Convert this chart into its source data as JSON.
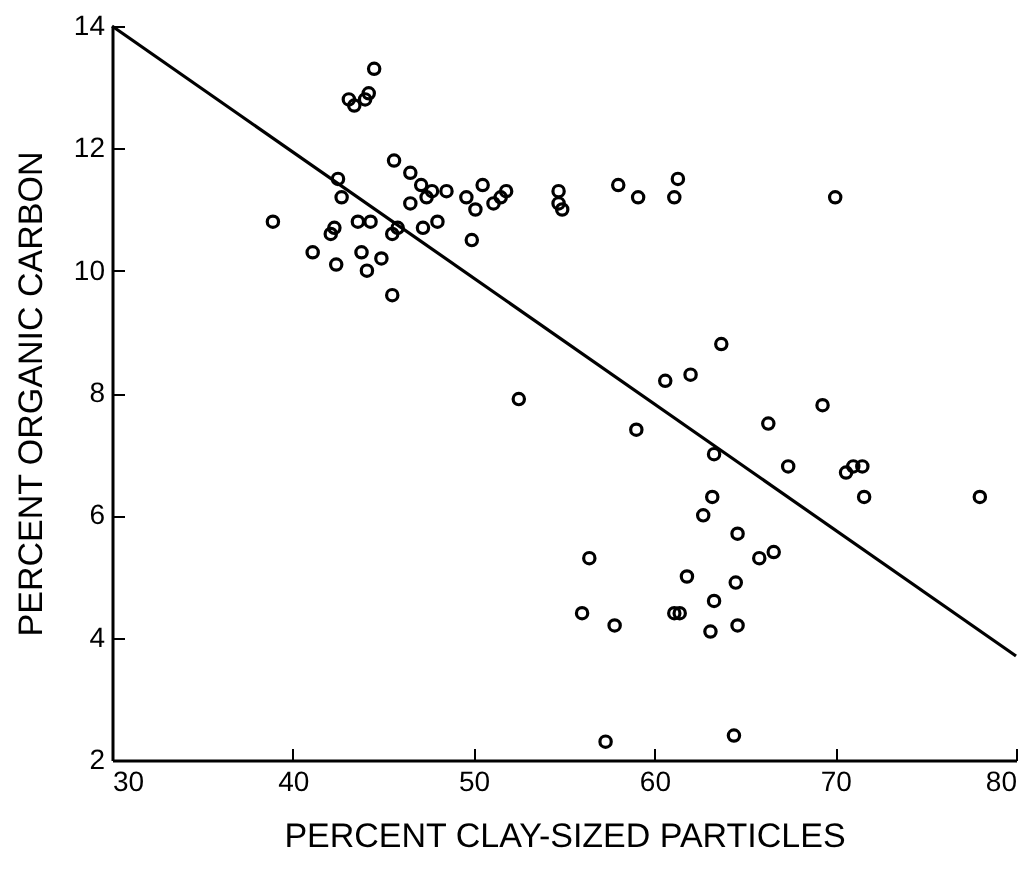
{
  "chart_data": {
    "type": "scatter",
    "xlabel": "PERCENT CLAY-SIZED PARTICLES",
    "ylabel": "PERCENT ORGANIC CARBON",
    "xlim": [
      30,
      80
    ],
    "xticks": [
      30,
      40,
      50,
      60,
      70,
      80
    ],
    "ylim": [
      2,
      14
    ],
    "yticks": [
      2,
      4,
      6,
      8,
      10,
      12,
      14
    ],
    "grid": false,
    "marker": "circle",
    "series": [
      {
        "color": "#000000",
        "x": [
          44.5,
          44.2,
          43.1,
          44.0,
          43.4,
          45.6,
          46.5,
          42.5,
          47.1,
          47.7,
          47.4,
          48.5,
          46.5,
          50.5,
          49.6,
          51.8,
          51.5,
          51.1,
          50.1,
          54.7,
          54.7,
          54.9,
          42.7,
          38.9,
          43.6,
          44.3,
          42.3,
          42.1,
          48.0,
          47.2,
          45.8,
          45.5,
          49.9,
          41.1,
          43.8,
          42.4,
          44.9,
          44.1,
          45.5,
          52.5,
          58.0,
          59.1,
          61.3,
          61.1,
          70.0,
          63.7,
          60.6,
          62.0,
          69.3,
          66.3,
          59.0,
          63.3,
          67.4,
          70.6,
          71.0,
          71.5,
          71.6,
          78.0,
          63.2,
          62.7,
          64.6,
          66.6,
          65.8,
          56.4,
          61.8,
          64.5,
          56.0,
          63.3,
          57.8,
          61.1,
          61.4,
          63.1,
          64.6,
          57.3,
          64.4
        ],
        "values": [
          13.3,
          12.9,
          12.8,
          12.8,
          12.7,
          11.8,
          11.6,
          11.5,
          11.4,
          11.3,
          11.2,
          11.3,
          11.1,
          11.4,
          11.2,
          11.3,
          11.2,
          11.1,
          11.0,
          11.3,
          11.1,
          11.0,
          11.2,
          10.8,
          10.8,
          10.8,
          10.7,
          10.6,
          10.8,
          10.7,
          10.7,
          10.6,
          10.5,
          10.3,
          10.3,
          10.1,
          10.2,
          10.0,
          9.6,
          7.9,
          11.4,
          11.2,
          11.5,
          11.2,
          11.2,
          8.8,
          8.2,
          8.3,
          7.8,
          7.5,
          7.4,
          7.0,
          6.8,
          6.7,
          6.8,
          6.8,
          6.3,
          6.3,
          6.3,
          6.0,
          5.7,
          5.4,
          5.3,
          5.3,
          5.0,
          4.9,
          4.4,
          4.6,
          4.2,
          4.4,
          4.4,
          4.1,
          4.2,
          2.3,
          2.4
        ]
      },
      {
        "type": "line",
        "color": "#000000",
        "marker": "none",
        "x": [
          30,
          80
        ],
        "values": [
          14,
          3.7
        ]
      }
    ]
  }
}
